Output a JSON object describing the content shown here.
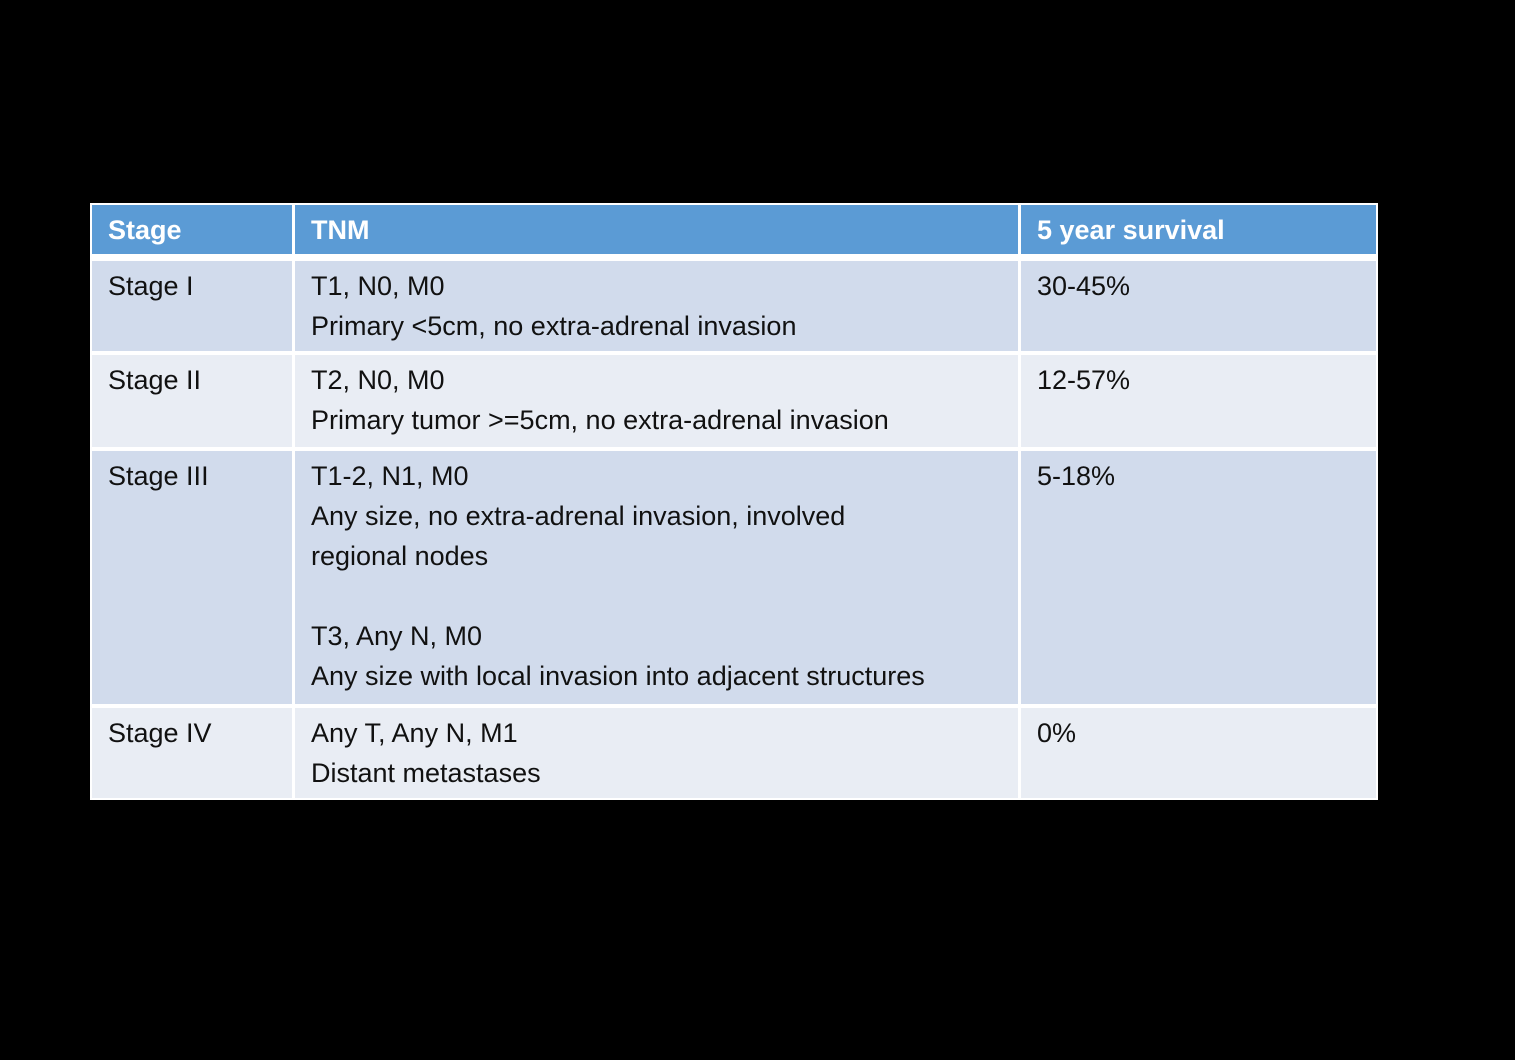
{
  "colors": {
    "page_bg": "#000000",
    "border": "#FFFFFF",
    "header_bg": "#5B9BD5",
    "header_text": "#FFFFFF",
    "body_text": "#111111",
    "row_band_a": "#D1DBEC",
    "row_band_b": "#E9EDF4"
  },
  "table": {
    "headers": {
      "stage": "Stage",
      "tnm": "TNM",
      "survival": "5 year survival"
    },
    "rows": [
      {
        "stage": "Stage I",
        "tnm": "T1, N0, M0\nPrimary <5cm, no extra-adrenal invasion",
        "survival": "30-45%"
      },
      {
        "stage": "Stage II",
        "tnm": "T2, N0, M0\nPrimary tumor >=5cm, no extra-adrenal invasion",
        "survival": "12-57%"
      },
      {
        "stage": "Stage III",
        "tnm": "T1-2, N1, M0\nAny size, no extra-adrenal invasion, involved\nregional nodes\n\nT3, Any N, M0\nAny size with local invasion into adjacent structures",
        "survival": "5-18%"
      },
      {
        "stage": "Stage IV",
        "tnm": "Any T, Any N, M1\nDistant metastases",
        "survival": "0%"
      }
    ]
  }
}
